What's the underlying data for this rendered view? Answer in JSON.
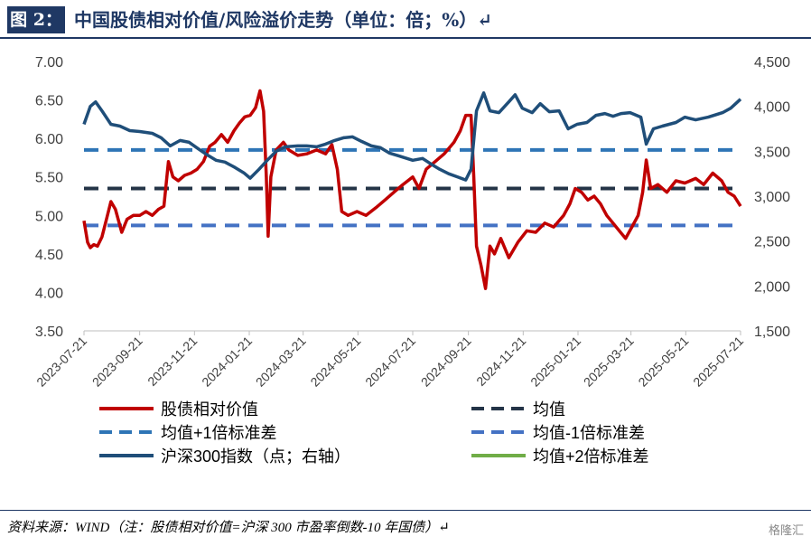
{
  "header": {
    "fig_label": "图 2：",
    "title": "中国股债相对价值/风险溢价走势（单位：倍；%）↵"
  },
  "footer": {
    "source": "资料来源：WIND（注：股债相对价值=沪深 300 市盈率倒数-10 年国债）↵",
    "watermark": "格隆汇"
  },
  "chart_data": {
    "type": "line",
    "x_tick_labels": [
      "2023-07-21",
      "2023-09-21",
      "2023-11-21",
      "2024-01-21",
      "2024-03-21",
      "2024-05-21",
      "2024-07-21",
      "2024-09-21",
      "2024-11-21",
      "2025-01-21",
      "2025-03-21",
      "2025-05-21",
      "2025-07-21"
    ],
    "x_range": [
      "2023-07-21",
      "2025-07-21"
    ],
    "y_left": {
      "ylim": [
        3.5,
        7.0
      ],
      "ticks": [
        "3.50",
        "4.00",
        "4.50",
        "5.00",
        "5.50",
        "6.00",
        "6.50",
        "7.00"
      ]
    },
    "y_right": {
      "ylim": [
        1500,
        4500
      ],
      "ticks": [
        "1,500",
        "2,000",
        "2,500",
        "3,000",
        "3,500",
        "4,000",
        "4,500"
      ]
    },
    "grid": false,
    "legend_position": "bottom",
    "series": [
      {
        "name": "股债相对价值",
        "axis": "left",
        "color": "#c00000",
        "style": "solid",
        "points": [
          [
            "2023-07-21",
            4.93
          ],
          [
            "2023-07-25",
            4.65
          ],
          [
            "2023-07-28",
            4.58
          ],
          [
            "2023-08-01",
            4.62
          ],
          [
            "2023-08-05",
            4.6
          ],
          [
            "2023-08-10",
            4.72
          ],
          [
            "2023-08-15",
            4.95
          ],
          [
            "2023-08-20",
            5.18
          ],
          [
            "2023-08-25",
            5.08
          ],
          [
            "2023-09-01",
            4.78
          ],
          [
            "2023-09-07",
            4.95
          ],
          [
            "2023-09-14",
            5.0
          ],
          [
            "2023-09-21",
            5.0
          ],
          [
            "2023-09-28",
            5.05
          ],
          [
            "2023-10-05",
            5.0
          ],
          [
            "2023-10-12",
            5.08
          ],
          [
            "2023-10-18",
            5.12
          ],
          [
            "2023-10-23",
            5.7
          ],
          [
            "2023-10-28",
            5.5
          ],
          [
            "2023-11-03",
            5.45
          ],
          [
            "2023-11-10",
            5.52
          ],
          [
            "2023-11-17",
            5.55
          ],
          [
            "2023-11-24",
            5.6
          ],
          [
            "2023-12-01",
            5.7
          ],
          [
            "2023-12-08",
            5.9
          ],
          [
            "2023-12-14",
            5.95
          ],
          [
            "2023-12-21",
            6.05
          ],
          [
            "2023-12-28",
            5.95
          ],
          [
            "2024-01-04",
            6.1
          ],
          [
            "2024-01-10",
            6.2
          ],
          [
            "2024-01-16",
            6.28
          ],
          [
            "2024-01-22",
            6.3
          ],
          [
            "2024-01-28",
            6.4
          ],
          [
            "2024-02-02",
            6.62
          ],
          [
            "2024-02-06",
            6.35
          ],
          [
            "2024-02-09",
            5.5
          ],
          [
            "2024-02-11",
            4.73
          ],
          [
            "2024-02-14",
            5.5
          ],
          [
            "2024-02-20",
            5.85
          ],
          [
            "2024-02-28",
            5.95
          ],
          [
            "2024-03-05",
            5.85
          ],
          [
            "2024-03-15",
            5.78
          ],
          [
            "2024-03-25",
            5.8
          ],
          [
            "2024-04-05",
            5.85
          ],
          [
            "2024-04-15",
            5.8
          ],
          [
            "2024-04-22",
            5.92
          ],
          [
            "2024-04-28",
            5.6
          ],
          [
            "2024-05-03",
            5.05
          ],
          [
            "2024-05-10",
            5.0
          ],
          [
            "2024-05-20",
            5.05
          ],
          [
            "2024-05-30",
            5.0
          ],
          [
            "2024-06-10",
            5.1
          ],
          [
            "2024-06-20",
            5.2
          ],
          [
            "2024-06-30",
            5.3
          ],
          [
            "2024-07-10",
            5.4
          ],
          [
            "2024-07-21",
            5.5
          ],
          [
            "2024-07-28",
            5.35
          ],
          [
            "2024-08-05",
            5.6
          ],
          [
            "2024-08-15",
            5.7
          ],
          [
            "2024-08-25",
            5.8
          ],
          [
            "2024-09-05",
            5.95
          ],
          [
            "2024-09-12",
            6.1
          ],
          [
            "2024-09-18",
            6.3
          ],
          [
            "2024-09-24",
            6.3
          ],
          [
            "2024-09-27",
            5.5
          ],
          [
            "2024-09-30",
            4.6
          ],
          [
            "2024-10-05",
            4.35
          ],
          [
            "2024-10-10",
            4.05
          ],
          [
            "2024-10-15",
            4.6
          ],
          [
            "2024-10-20",
            4.5
          ],
          [
            "2024-10-27",
            4.7
          ],
          [
            "2024-11-05",
            4.45
          ],
          [
            "2024-11-15",
            4.65
          ],
          [
            "2024-11-25",
            4.8
          ],
          [
            "2024-12-05",
            4.78
          ],
          [
            "2024-12-15",
            4.9
          ],
          [
            "2024-12-25",
            4.85
          ],
          [
            "2025-01-05",
            5.0
          ],
          [
            "2025-01-12",
            5.15
          ],
          [
            "2025-01-18",
            5.35
          ],
          [
            "2025-01-25",
            5.3
          ],
          [
            "2025-02-01",
            5.2
          ],
          [
            "2025-02-08",
            5.25
          ],
          [
            "2025-02-15",
            5.15
          ],
          [
            "2025-02-22",
            5.0
          ],
          [
            "2025-03-01",
            4.9
          ],
          [
            "2025-03-08",
            4.8
          ],
          [
            "2025-03-15",
            4.7
          ],
          [
            "2025-03-22",
            4.85
          ],
          [
            "2025-03-29",
            5.0
          ],
          [
            "2025-04-03",
            5.3
          ],
          [
            "2025-04-07",
            5.72
          ],
          [
            "2025-04-12",
            5.35
          ],
          [
            "2025-04-20",
            5.4
          ],
          [
            "2025-04-30",
            5.3
          ],
          [
            "2025-05-10",
            5.45
          ],
          [
            "2025-05-20",
            5.42
          ],
          [
            "2025-06-01",
            5.48
          ],
          [
            "2025-06-10",
            5.4
          ],
          [
            "2025-06-20",
            5.55
          ],
          [
            "2025-06-30",
            5.45
          ],
          [
            "2025-07-07",
            5.3
          ],
          [
            "2025-07-14",
            5.25
          ],
          [
            "2025-07-21",
            5.12
          ]
        ]
      },
      {
        "name": "均值",
        "axis": "left",
        "color": "#243447",
        "style": "dashed",
        "value": 5.35
      },
      {
        "name": "均值+1倍标准差",
        "axis": "left",
        "color": "#2e75b6",
        "style": "dashed",
        "value": 5.85
      },
      {
        "name": "均值-1倍标准差",
        "axis": "left",
        "color": "#4472c4",
        "style": "dashed",
        "value": 4.87
      },
      {
        "name": "沪深300指数（点；右轴）",
        "axis": "right",
        "color": "#1f4e79",
        "style": "solid",
        "points": [
          [
            "2023-07-21",
            3800
          ],
          [
            "2023-07-28",
            4000
          ],
          [
            "2023-08-03",
            4050
          ],
          [
            "2023-08-10",
            3950
          ],
          [
            "2023-08-20",
            3800
          ],
          [
            "2023-08-30",
            3780
          ],
          [
            "2023-09-10",
            3730
          ],
          [
            "2023-09-21",
            3720
          ],
          [
            "2023-10-05",
            3700
          ],
          [
            "2023-10-15",
            3650
          ],
          [
            "2023-10-25",
            3560
          ],
          [
            "2023-11-05",
            3620
          ],
          [
            "2023-11-15",
            3600
          ],
          [
            "2023-11-25",
            3530
          ],
          [
            "2023-12-05",
            3460
          ],
          [
            "2023-12-15",
            3400
          ],
          [
            "2023-12-25",
            3380
          ],
          [
            "2024-01-05",
            3320
          ],
          [
            "2024-01-15",
            3260
          ],
          [
            "2024-01-22",
            3200
          ],
          [
            "2024-02-01",
            3300
          ],
          [
            "2024-02-10",
            3400
          ],
          [
            "2024-02-20",
            3500
          ],
          [
            "2024-03-01",
            3550
          ],
          [
            "2024-03-15",
            3560
          ],
          [
            "2024-03-25",
            3560
          ],
          [
            "2024-04-05",
            3550
          ],
          [
            "2024-04-15",
            3580
          ],
          [
            "2024-04-25",
            3620
          ],
          [
            "2024-05-05",
            3650
          ],
          [
            "2024-05-15",
            3660
          ],
          [
            "2024-05-25",
            3610
          ],
          [
            "2024-06-05",
            3560
          ],
          [
            "2024-06-15",
            3540
          ],
          [
            "2024-06-25",
            3480
          ],
          [
            "2024-07-05",
            3450
          ],
          [
            "2024-07-21",
            3400
          ],
          [
            "2024-08-01",
            3420
          ],
          [
            "2024-08-10",
            3360
          ],
          [
            "2024-08-20",
            3300
          ],
          [
            "2024-08-30",
            3250
          ],
          [
            "2024-09-10",
            3210
          ],
          [
            "2024-09-18",
            3180
          ],
          [
            "2024-09-24",
            3300
          ],
          [
            "2024-09-30",
            3950
          ],
          [
            "2024-10-08",
            4150
          ],
          [
            "2024-10-15",
            3950
          ],
          [
            "2024-10-25",
            3930
          ],
          [
            "2024-11-05",
            4050
          ],
          [
            "2024-11-12",
            4130
          ],
          [
            "2024-11-20",
            3980
          ],
          [
            "2024-12-01",
            3930
          ],
          [
            "2024-12-10",
            4030
          ],
          [
            "2024-12-20",
            3940
          ],
          [
            "2024-12-31",
            3950
          ],
          [
            "2025-01-10",
            3750
          ],
          [
            "2025-01-20",
            3800
          ],
          [
            "2025-01-31",
            3820
          ],
          [
            "2025-02-10",
            3900
          ],
          [
            "2025-02-20",
            3920
          ],
          [
            "2025-03-01",
            3890
          ],
          [
            "2025-03-10",
            3920
          ],
          [
            "2025-03-20",
            3930
          ],
          [
            "2025-04-01",
            3880
          ],
          [
            "2025-04-07",
            3580
          ],
          [
            "2025-04-15",
            3750
          ],
          [
            "2025-04-25",
            3780
          ],
          [
            "2025-05-10",
            3820
          ],
          [
            "2025-05-20",
            3880
          ],
          [
            "2025-06-01",
            3850
          ],
          [
            "2025-06-15",
            3880
          ],
          [
            "2025-07-01",
            3930
          ],
          [
            "2025-07-10",
            3980
          ],
          [
            "2025-07-21",
            4080
          ]
        ]
      },
      {
        "name": "均值+2倍标准差",
        "axis": "left",
        "color": "#70ad47",
        "style": "solid",
        "value": null
      }
    ]
  }
}
